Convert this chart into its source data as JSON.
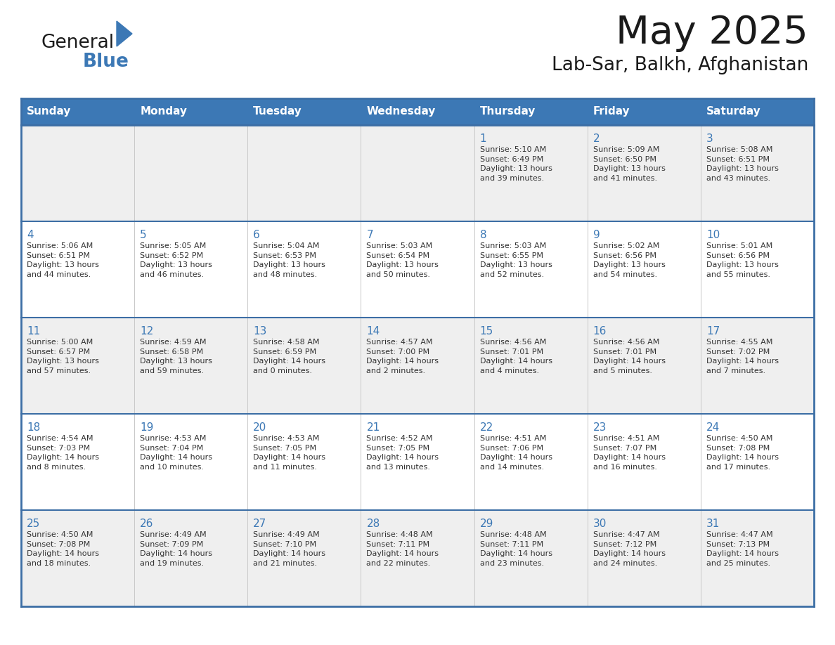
{
  "title": "May 2025",
  "subtitle": "Lab-Sar, Balkh, Afghanistan",
  "days_of_week": [
    "Sunday",
    "Monday",
    "Tuesday",
    "Wednesday",
    "Thursday",
    "Friday",
    "Saturday"
  ],
  "header_bg": "#3C78B5",
  "header_text": "#FFFFFF",
  "row_bg_odd": "#EFEFEF",
  "row_bg_even": "#FFFFFF",
  "day_num_color": "#3C78B5",
  "cell_text_color": "#333333",
  "border_color": "#3C6EA5",
  "logo_general_color": "#1a1a1a",
  "logo_blue_color": "#3C78B5",
  "title_color": "#1a1a1a",
  "subtitle_color": "#1a1a1a",
  "weeks": [
    {
      "days": [
        {
          "day": "",
          "info": ""
        },
        {
          "day": "",
          "info": ""
        },
        {
          "day": "",
          "info": ""
        },
        {
          "day": "",
          "info": ""
        },
        {
          "day": "1",
          "info": "Sunrise: 5:10 AM\nSunset: 6:49 PM\nDaylight: 13 hours\nand 39 minutes."
        },
        {
          "day": "2",
          "info": "Sunrise: 5:09 AM\nSunset: 6:50 PM\nDaylight: 13 hours\nand 41 minutes."
        },
        {
          "day": "3",
          "info": "Sunrise: 5:08 AM\nSunset: 6:51 PM\nDaylight: 13 hours\nand 43 minutes."
        }
      ]
    },
    {
      "days": [
        {
          "day": "4",
          "info": "Sunrise: 5:06 AM\nSunset: 6:51 PM\nDaylight: 13 hours\nand 44 minutes."
        },
        {
          "day": "5",
          "info": "Sunrise: 5:05 AM\nSunset: 6:52 PM\nDaylight: 13 hours\nand 46 minutes."
        },
        {
          "day": "6",
          "info": "Sunrise: 5:04 AM\nSunset: 6:53 PM\nDaylight: 13 hours\nand 48 minutes."
        },
        {
          "day": "7",
          "info": "Sunrise: 5:03 AM\nSunset: 6:54 PM\nDaylight: 13 hours\nand 50 minutes."
        },
        {
          "day": "8",
          "info": "Sunrise: 5:03 AM\nSunset: 6:55 PM\nDaylight: 13 hours\nand 52 minutes."
        },
        {
          "day": "9",
          "info": "Sunrise: 5:02 AM\nSunset: 6:56 PM\nDaylight: 13 hours\nand 54 minutes."
        },
        {
          "day": "10",
          "info": "Sunrise: 5:01 AM\nSunset: 6:56 PM\nDaylight: 13 hours\nand 55 minutes."
        }
      ]
    },
    {
      "days": [
        {
          "day": "11",
          "info": "Sunrise: 5:00 AM\nSunset: 6:57 PM\nDaylight: 13 hours\nand 57 minutes."
        },
        {
          "day": "12",
          "info": "Sunrise: 4:59 AM\nSunset: 6:58 PM\nDaylight: 13 hours\nand 59 minutes."
        },
        {
          "day": "13",
          "info": "Sunrise: 4:58 AM\nSunset: 6:59 PM\nDaylight: 14 hours\nand 0 minutes."
        },
        {
          "day": "14",
          "info": "Sunrise: 4:57 AM\nSunset: 7:00 PM\nDaylight: 14 hours\nand 2 minutes."
        },
        {
          "day": "15",
          "info": "Sunrise: 4:56 AM\nSunset: 7:01 PM\nDaylight: 14 hours\nand 4 minutes."
        },
        {
          "day": "16",
          "info": "Sunrise: 4:56 AM\nSunset: 7:01 PM\nDaylight: 14 hours\nand 5 minutes."
        },
        {
          "day": "17",
          "info": "Sunrise: 4:55 AM\nSunset: 7:02 PM\nDaylight: 14 hours\nand 7 minutes."
        }
      ]
    },
    {
      "days": [
        {
          "day": "18",
          "info": "Sunrise: 4:54 AM\nSunset: 7:03 PM\nDaylight: 14 hours\nand 8 minutes."
        },
        {
          "day": "19",
          "info": "Sunrise: 4:53 AM\nSunset: 7:04 PM\nDaylight: 14 hours\nand 10 minutes."
        },
        {
          "day": "20",
          "info": "Sunrise: 4:53 AM\nSunset: 7:05 PM\nDaylight: 14 hours\nand 11 minutes."
        },
        {
          "day": "21",
          "info": "Sunrise: 4:52 AM\nSunset: 7:05 PM\nDaylight: 14 hours\nand 13 minutes."
        },
        {
          "day": "22",
          "info": "Sunrise: 4:51 AM\nSunset: 7:06 PM\nDaylight: 14 hours\nand 14 minutes."
        },
        {
          "day": "23",
          "info": "Sunrise: 4:51 AM\nSunset: 7:07 PM\nDaylight: 14 hours\nand 16 minutes."
        },
        {
          "day": "24",
          "info": "Sunrise: 4:50 AM\nSunset: 7:08 PM\nDaylight: 14 hours\nand 17 minutes."
        }
      ]
    },
    {
      "days": [
        {
          "day": "25",
          "info": "Sunrise: 4:50 AM\nSunset: 7:08 PM\nDaylight: 14 hours\nand 18 minutes."
        },
        {
          "day": "26",
          "info": "Sunrise: 4:49 AM\nSunset: 7:09 PM\nDaylight: 14 hours\nand 19 minutes."
        },
        {
          "day": "27",
          "info": "Sunrise: 4:49 AM\nSunset: 7:10 PM\nDaylight: 14 hours\nand 21 minutes."
        },
        {
          "day": "28",
          "info": "Sunrise: 4:48 AM\nSunset: 7:11 PM\nDaylight: 14 hours\nand 22 minutes."
        },
        {
          "day": "29",
          "info": "Sunrise: 4:48 AM\nSunset: 7:11 PM\nDaylight: 14 hours\nand 23 minutes."
        },
        {
          "day": "30",
          "info": "Sunrise: 4:47 AM\nSunset: 7:12 PM\nDaylight: 14 hours\nand 24 minutes."
        },
        {
          "day": "31",
          "info": "Sunrise: 4:47 AM\nSunset: 7:13 PM\nDaylight: 14 hours\nand 25 minutes."
        }
      ]
    }
  ]
}
